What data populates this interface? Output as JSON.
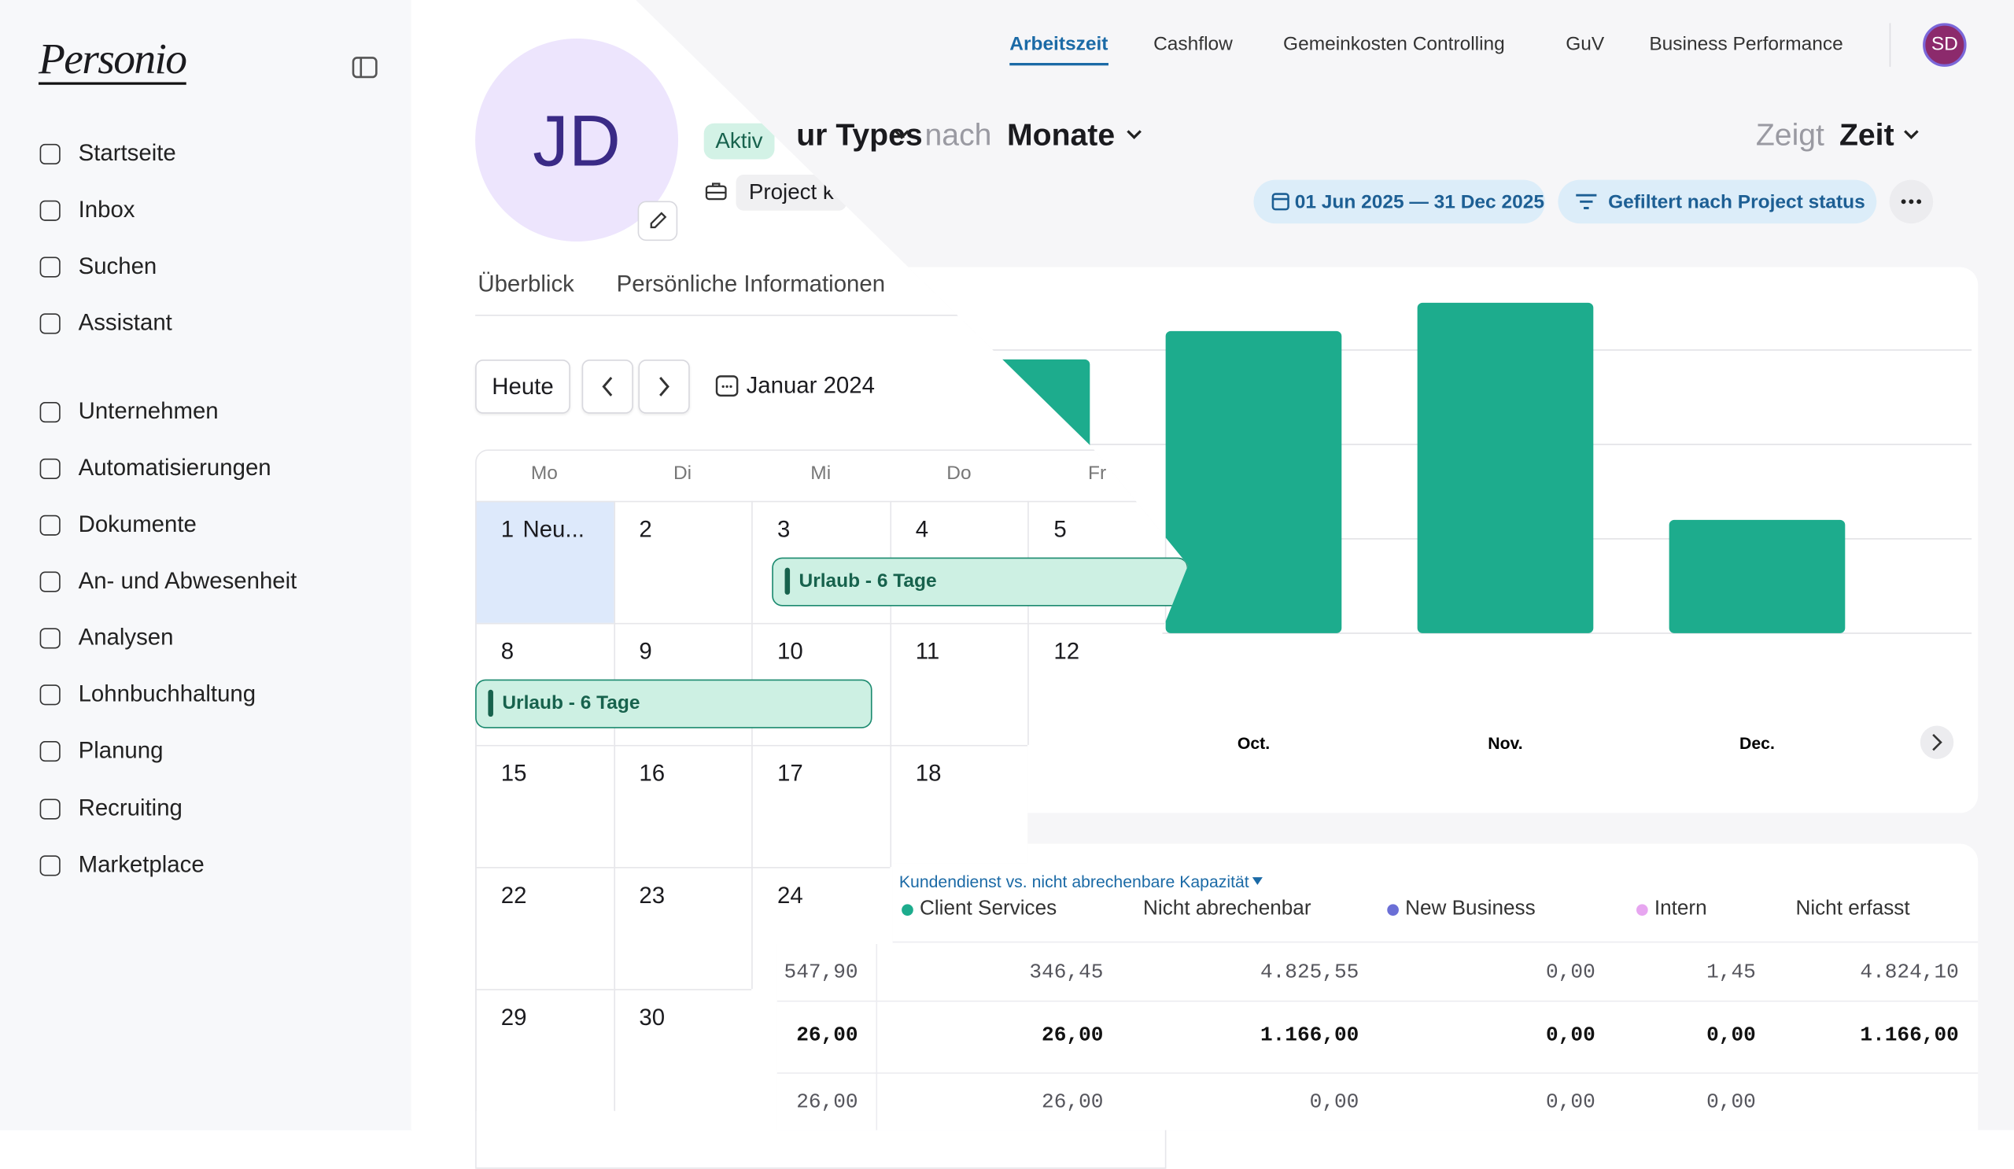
{
  "sidebar": {
    "logo": "Personio",
    "nav": [
      "Startseite",
      "Inbox",
      "Suchen",
      "Assistant",
      "Unternehmen",
      "Automatisierungen",
      "Dokumente",
      "An- und Abwesenheit",
      "Analysen",
      "Lohnbuchhaltung",
      "Planung",
      "Recruiting",
      "Marketplace"
    ]
  },
  "top_nav": {
    "tabs": [
      "Arbeitszeit",
      "Cashflow",
      "Gemeinkosten Controlling",
      "GuV",
      "Business Performance"
    ],
    "user_initials": "SD"
  },
  "profile": {
    "initials": "JD",
    "status": "Aktiv",
    "project": "Project k",
    "tabs": [
      "Überblick",
      "Persönliche Informationen"
    ]
  },
  "calendar": {
    "today": "Heute",
    "month": "Januar 2024",
    "weekdays": [
      "Mo",
      "Di",
      "Mi",
      "Do",
      "Fr"
    ],
    "weeks": [
      [
        "1",
        "2",
        "3",
        "4",
        "5"
      ],
      [
        "8",
        "9",
        "10",
        "11",
        "12"
      ],
      [
        "15",
        "16",
        "17",
        "18"
      ],
      [
        "22",
        "23",
        "24"
      ],
      [
        "29",
        "30"
      ]
    ],
    "first_day_note": "Neu...",
    "events": [
      "Urlaub - 6 Tage",
      "Urlaub - 6 Tage"
    ]
  },
  "report": {
    "group_by": "ur Types",
    "connector": "nach",
    "period": "Monate",
    "shows_label": "Zeigt",
    "shows_value": "Zeit",
    "date_range": "01 Jun 2025 — 31 Dec 2025",
    "filter": "Gefiltert nach Project status"
  },
  "chart_data": {
    "type": "bar",
    "categories": [
      null,
      "Oct.",
      "Nov.",
      "Dec."
    ],
    "values": [
      2.9,
      3.2,
      3.5,
      1.2
    ],
    "color": "#1dac8d",
    "ylim": [
      0,
      4
    ],
    "yticks": [
      0,
      1,
      2,
      3
    ],
    "grid": true
  },
  "table": {
    "title": "Kundendienst vs. nicht abrechenbare Kapazität",
    "columns": [
      {
        "name": "Client Services",
        "color": "#1dac8d"
      },
      {
        "name": "Nicht abrechenbar",
        "color": null
      },
      {
        "name": "New Business",
        "color": "#6b6fd6"
      },
      {
        "name": "Intern",
        "color": "#e7a6f0"
      },
      {
        "name": "Nicht erfasst",
        "color": null
      }
    ],
    "rows": [
      [
        "547,90",
        "346,45",
        "4.825,55",
        "0,00",
        "1,45",
        "4.824,10"
      ],
      [
        "26,00",
        "26,00",
        "1.166,00",
        "0,00",
        "0,00",
        "1.166,00"
      ],
      [
        "26,00",
        "26,00",
        "0,00",
        "0,00",
        "0,00"
      ]
    ]
  }
}
